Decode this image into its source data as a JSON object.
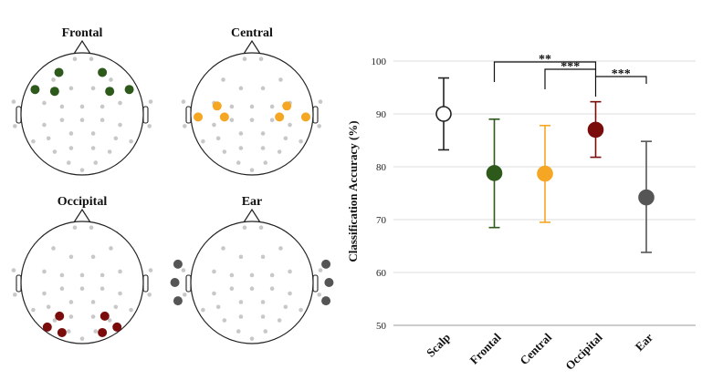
{
  "heads": [
    {
      "title": "Frontal",
      "color": "#2d5a1b",
      "selected": [
        [
          -0.38,
          -0.68
        ],
        [
          0.33,
          -0.68
        ],
        [
          -0.77,
          -0.4
        ],
        [
          -0.45,
          -0.37
        ],
        [
          0.45,
          -0.37
        ],
        [
          0.77,
          -0.4
        ]
      ]
    },
    {
      "title": "Central",
      "color": "#f5a623",
      "selected": [
        [
          -0.88,
          0.05
        ],
        [
          -0.57,
          -0.13
        ],
        [
          -0.45,
          0.05
        ],
        [
          0.45,
          0.05
        ],
        [
          0.57,
          -0.13
        ],
        [
          0.88,
          0.05
        ]
      ]
    },
    {
      "title": "Occipital",
      "color": "#7b0c0c",
      "selected": [
        [
          -0.37,
          0.55
        ],
        [
          0.37,
          0.55
        ],
        [
          -0.57,
          0.73
        ],
        [
          -0.33,
          0.82
        ],
        [
          0.33,
          0.82
        ],
        [
          0.57,
          0.73
        ]
      ]
    },
    {
      "title": "Ear",
      "color": "#555555",
      "selected": [
        [
          -1.21,
          -0.3
        ],
        [
          -1.26,
          0.0
        ],
        [
          -1.21,
          0.3
        ],
        [
          1.21,
          -0.3
        ],
        [
          1.26,
          0.0
        ],
        [
          1.21,
          0.3
        ]
      ]
    }
  ],
  "chart_data": {
    "type": "scatter",
    "categories": [
      "Scalp",
      "Frontal",
      "Central",
      "Occipital",
      "Ear"
    ],
    "means": [
      90.0,
      78.8,
      78.7,
      87.0,
      74.2
    ],
    "upper": [
      96.8,
      89.0,
      87.8,
      92.3,
      84.8
    ],
    "lower": [
      83.2,
      68.5,
      69.5,
      81.8,
      63.8
    ],
    "colors": [
      "#ffffff",
      "#2d5a1b",
      "#f5a623",
      "#7b0c0c",
      "#555555"
    ],
    "ylabel": "Classification Accuracy (%)",
    "ylim": [
      50,
      100
    ],
    "yticks": [
      50,
      60,
      70,
      80,
      90,
      100
    ],
    "grid": true,
    "significance": [
      {
        "from": "Frontal",
        "to": "Occipital",
        "label": "**"
      },
      {
        "from": "Central",
        "to": "Occipital",
        "label": "***"
      },
      {
        "from": "Occipital",
        "to": "Ear",
        "label": "***"
      }
    ]
  }
}
